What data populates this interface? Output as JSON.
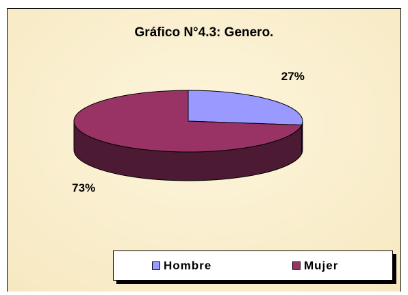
{
  "chart_data": {
    "type": "pie",
    "title": "Gráfico N°4.3: Genero.",
    "categories": [
      "Hombre",
      "Mujer"
    ],
    "values": [
      27,
      73
    ],
    "value_labels": [
      "27%",
      "73%"
    ],
    "colors": [
      "#9999ff",
      "#993366"
    ],
    "legend": "bottom",
    "three_d": true
  }
}
